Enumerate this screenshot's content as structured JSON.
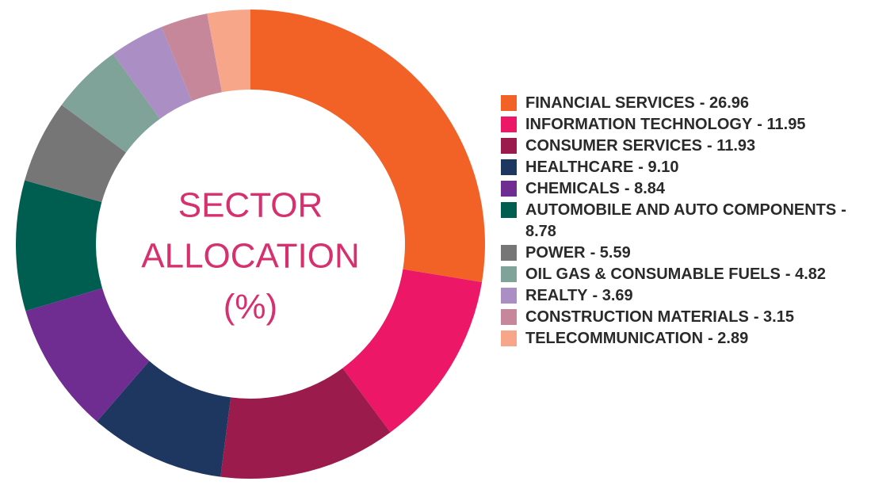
{
  "chart_data": {
    "type": "donut",
    "title": [
      "SECTOR",
      "ALLOCATION",
      "(%)"
    ],
    "categories": [
      "FINANCIAL SERVICES",
      "INFORMATION TECHNOLOGY",
      "CONSUMER SERVICES",
      "HEALTHCARE",
      "CHEMICALS",
      "AUTOMOBILE AND AUTO COMPONENTS",
      "POWER",
      "OIL GAS & CONSUMABLE FUELS",
      "REALTY",
      "CONSTRUCTION MATERIALS",
      "TELECOMMUNICATION"
    ],
    "values": [
      26.96,
      11.95,
      11.93,
      9.1,
      8.84,
      8.78,
      5.59,
      4.82,
      3.69,
      3.15,
      2.89
    ],
    "value_labels": [
      "- 26.96",
      "- 11.95",
      "- 11.93",
      "- 9.10",
      "- 8.84",
      "- 8.78",
      "- 5.59",
      "- 4.82",
      "- 3.69",
      "- 3.15",
      "- 2.89"
    ],
    "colors": [
      "#f26126",
      "#ec1766",
      "#9b1b4d",
      "#1d3761",
      "#6f2c91",
      "#005e50",
      "#767676",
      "#7fa399",
      "#ab8ec3",
      "#c7879b",
      "#f7a68a"
    ]
  }
}
